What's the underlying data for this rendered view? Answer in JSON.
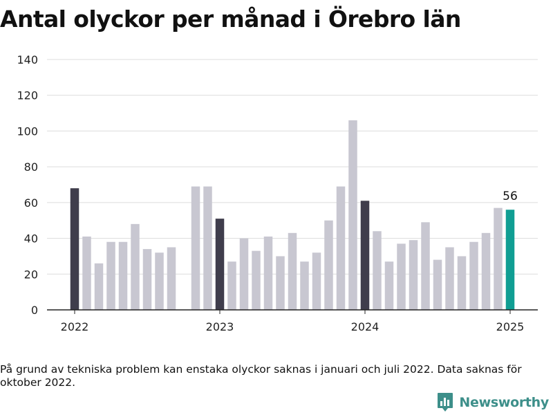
{
  "header": {
    "title": "Antal olyckor per månad i Örebro län"
  },
  "footer": {
    "note": "På grund av tekniska problem kan enstaka olyckor saknas i januari och juli 2022. Data saknas för oktober 2022.",
    "brand": "Newsworthy",
    "brand_icon": "bar-chart-logo-icon"
  },
  "colors": {
    "january": "#3f3d4c",
    "regular": "#c8c7d1",
    "latest": "#109e93",
    "grid": "#dcdcdc",
    "axis": "#222222",
    "brand": "#3d8f8a"
  },
  "chart_data": {
    "type": "bar",
    "title": "Antal olyckor per månad i Örebro län",
    "xlabel": "",
    "ylabel": "",
    "ylim": [
      0,
      140
    ],
    "yticks": [
      0,
      20,
      40,
      60,
      80,
      100,
      120,
      140
    ],
    "xticks": [
      "2022",
      "2023",
      "2024",
      "2025"
    ],
    "grid": true,
    "highlight_label": "56",
    "categories": [
      "2022-01",
      "2022-02",
      "2022-03",
      "2022-04",
      "2022-05",
      "2022-06",
      "2022-07",
      "2022-08",
      "2022-09",
      "2022-10",
      "2022-11",
      "2022-12",
      "2023-01",
      "2023-02",
      "2023-03",
      "2023-04",
      "2023-05",
      "2023-06",
      "2023-07",
      "2023-08",
      "2023-09",
      "2023-10",
      "2023-11",
      "2023-12",
      "2024-01",
      "2024-02",
      "2024-03",
      "2024-04",
      "2024-05",
      "2024-06",
      "2024-07",
      "2024-08",
      "2024-09",
      "2024-10",
      "2024-11",
      "2024-12",
      "2025-01"
    ],
    "values": [
      68,
      41,
      26,
      38,
      38,
      48,
      34,
      32,
      35,
      null,
      69,
      69,
      51,
      27,
      40,
      33,
      41,
      30,
      43,
      27,
      32,
      50,
      69,
      106,
      61,
      44,
      27,
      37,
      39,
      49,
      28,
      35,
      30,
      38,
      43,
      57,
      56
    ]
  }
}
